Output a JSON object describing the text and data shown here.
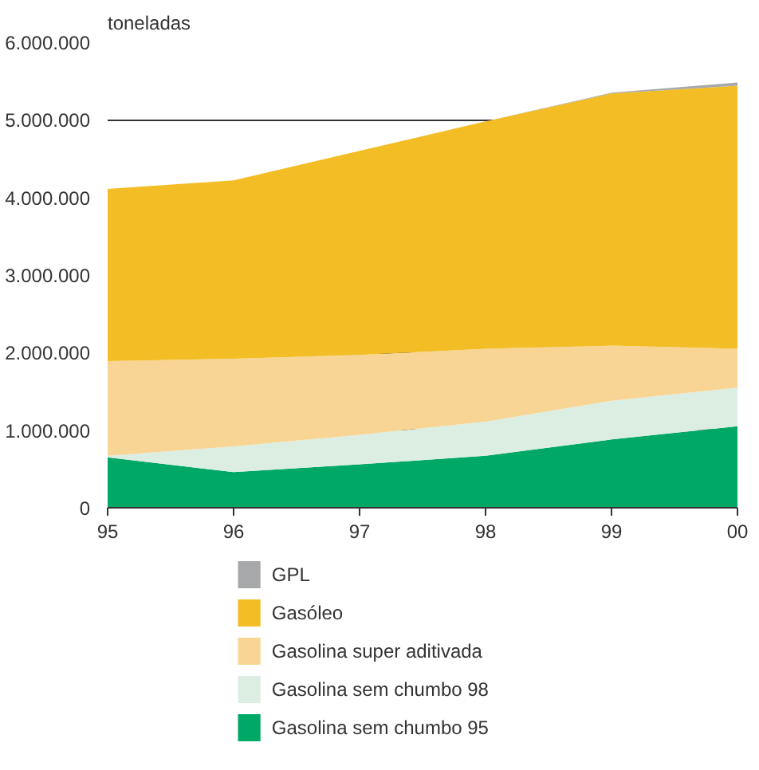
{
  "chart_data": {
    "type": "area",
    "stacked": true,
    "ylabel": "toneladas",
    "categories": [
      "95",
      "96",
      "97",
      "98",
      "99",
      "00"
    ],
    "series": [
      {
        "name": "Gasolina sem chumbo 95",
        "color": "#00a865",
        "values": [
          650000,
          460000,
          560000,
          670000,
          880000,
          1050000
        ]
      },
      {
        "name": "Gasolina sem chumbo 98",
        "color": "#dcede2",
        "values": [
          20000,
          330000,
          380000,
          440000,
          500000,
          500000
        ]
      },
      {
        "name": "Gasolina super aditivada",
        "color": "#f8d594",
        "values": [
          1220000,
          1130000,
          1030000,
          940000,
          710000,
          500000
        ]
      },
      {
        "name": "Gasóleo",
        "color": "#f3bd26",
        "values": [
          2220000,
          2300000,
          2630000,
          2930000,
          3250000,
          3390000
        ]
      },
      {
        "name": "GPL",
        "color": "#a6a8aa",
        "values": [
          0,
          0,
          0,
          0,
          10000,
          40000
        ]
      }
    ],
    "ylim": [
      0,
      6000000
    ],
    "yticks": [
      0,
      {
        "value": 1000000,
        "label": "1.000.000"
      },
      {
        "value": 2000000,
        "label": "2.000.000"
      },
      {
        "value": 3000000,
        "label": "3.000.000"
      },
      {
        "value": 4000000,
        "label": "4.000.000"
      },
      {
        "value": 5000000,
        "label": "5.000.000"
      },
      {
        "value": 6000000,
        "label": "6.000.000"
      }
    ],
    "grid": "y",
    "legend": "bottom"
  }
}
